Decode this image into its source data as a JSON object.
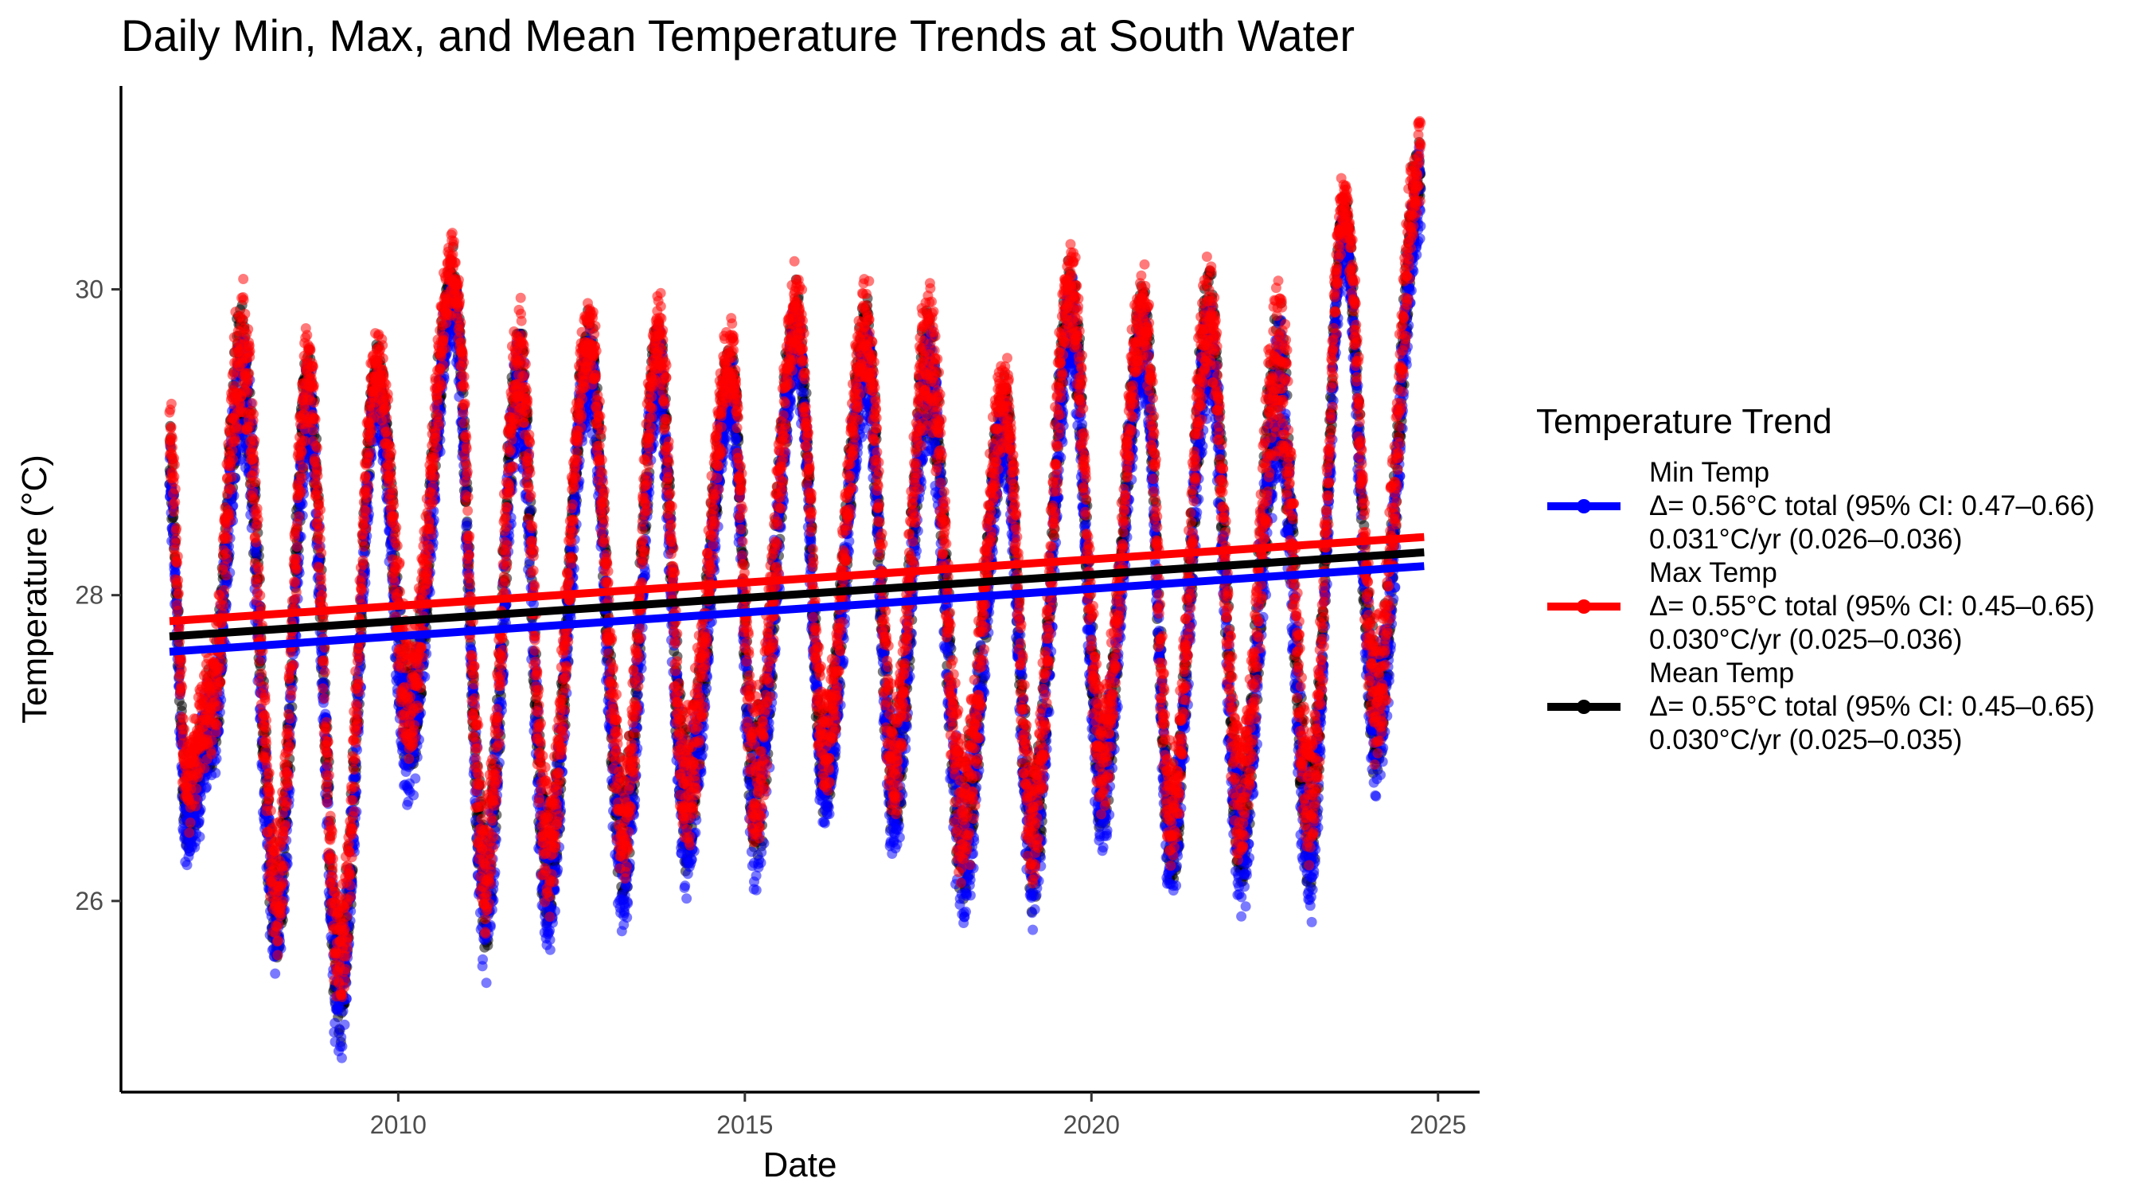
{
  "chart_data": {
    "type": "scatter",
    "title": "Daily Min, Max, and Mean Temperature Trends at South Water",
    "xlabel": "Date",
    "ylabel": "Temperature (°C)",
    "xlim": [
      2006.0,
      2025.6
    ],
    "ylim": [
      24.75,
      31.33
    ],
    "x_ticks": [
      2010,
      2015,
      2020,
      2025
    ],
    "y_ticks": [
      26,
      28,
      30
    ],
    "x_tick_labels": [
      "2010",
      "2015",
      "2020",
      "2025"
    ],
    "y_tick_labels": [
      "26",
      "28",
      "30"
    ],
    "grid": false,
    "legend": {
      "title": "Temperature Trend",
      "position": "right",
      "entries": [
        {
          "series": "Min Temp",
          "lines": [
            "Min Temp",
            "Δ= 0.56°C total (95% CI: 0.47–0.66)",
            "0.031°C/yr (0.026–0.036)"
          ]
        },
        {
          "series": "Max Temp",
          "lines": [
            "Max Temp",
            "Δ= 0.55°C total (95% CI: 0.45–0.65)",
            "0.030°C/yr (0.025–0.036)"
          ]
        },
        {
          "series": "Mean Temp",
          "lines": [
            "Mean Temp",
            "Δ= 0.55°C total (95% CI: 0.45–0.65)",
            "0.030°C/yr (0.025–0.035)"
          ]
        }
      ]
    },
    "series": [
      {
        "name": "Min Temp",
        "color": "#0000ff",
        "trend": {
          "x": [
            2006.7,
            2024.8
          ],
          "y": [
            27.63,
            28.19
          ]
        }
      },
      {
        "name": "Max Temp",
        "color": "#ff0000",
        "trend": {
          "x": [
            2006.7,
            2024.8
          ],
          "y": [
            27.83,
            28.38
          ]
        }
      },
      {
        "name": "Mean Temp",
        "color": "#000000",
        "trend": {
          "x": [
            2006.7,
            2024.8
          ],
          "y": [
            27.73,
            28.28
          ]
        }
      }
    ],
    "seasonal_extremes": {
      "x": [
        2006.7,
        2006.95,
        2007.3,
        2007.75,
        2008.25,
        2008.7,
        2009.15,
        2009.7,
        2010.15,
        2010.8,
        2011.25,
        2011.75,
        2012.15,
        2012.75,
        2013.25,
        2013.75,
        2014.15,
        2014.8,
        2015.15,
        2015.75,
        2016.15,
        2016.75,
        2017.15,
        2017.65,
        2018.15,
        2018.75,
        2019.15,
        2019.7,
        2020.15,
        2020.75,
        2021.15,
        2021.7,
        2022.15,
        2022.7,
        2023.15,
        2023.65,
        2024.1,
        2024.75
      ],
      "min": [
        28.6,
        26.4,
        26.9,
        29.1,
        25.6,
        29.0,
        25.1,
        29.2,
        26.8,
        29.8,
        25.7,
        29.1,
        25.8,
        29.3,
        26.0,
        29.3,
        26.2,
        29.2,
        26.2,
        29.5,
        26.6,
        29.3,
        26.4,
        29.1,
        26.0,
        28.9,
        26.0,
        29.6,
        26.5,
        29.5,
        26.1,
        29.4,
        26.1,
        28.9,
        26.1,
        30.3,
        26.8,
        30.5
      ],
      "max": [
        29.1,
        26.9,
        27.5,
        29.9,
        26.3,
        29.6,
        25.9,
        29.6,
        27.6,
        30.2,
        26.5,
        29.8,
        26.6,
        29.8,
        26.8,
        29.8,
        27.1,
        29.6,
        27.2,
        30.0,
        27.2,
        29.9,
        27.2,
        29.9,
        26.9,
        29.4,
        26.8,
        30.2,
        27.2,
        30.0,
        26.8,
        30.1,
        26.9,
        29.9,
        26.9,
        30.6,
        27.7,
        31.0
      ]
    }
  }
}
